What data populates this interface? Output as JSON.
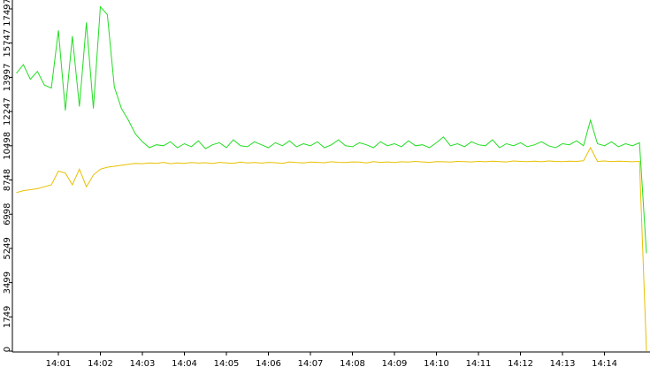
{
  "chart_data": {
    "type": "line",
    "categories": [
      null,
      null,
      null,
      null,
      null,
      null,
      "14:01",
      null,
      null,
      null,
      null,
      null,
      "14:02",
      null,
      null,
      null,
      null,
      null,
      "14:03",
      null,
      null,
      null,
      null,
      null,
      "14:04",
      null,
      null,
      null,
      null,
      null,
      "14:05",
      null,
      null,
      null,
      null,
      null,
      "14:06",
      null,
      null,
      null,
      null,
      null,
      "14:07",
      null,
      null,
      null,
      null,
      null,
      "14:08",
      null,
      null,
      null,
      null,
      null,
      "14:09",
      null,
      null,
      null,
      null,
      null,
      "14:10",
      null,
      null,
      null,
      null,
      null,
      "14:11",
      null,
      null,
      null,
      null,
      null,
      "14:12",
      null,
      null,
      null,
      null,
      null,
      "14:13",
      null,
      null,
      null,
      null,
      null,
      "14:14",
      null,
      null,
      null,
      null,
      null,
      null
    ],
    "series": [
      {
        "color": "#22dd22",
        "values": [
          14200,
          14650,
          13900,
          14300,
          13600,
          13450,
          16400,
          12300,
          16100,
          12500,
          16800,
          12400,
          17600,
          17200,
          13500,
          12400,
          11800,
          11100,
          10700,
          10400,
          10550,
          10500,
          10700,
          10400,
          10600,
          10450,
          10750,
          10350,
          10550,
          10650,
          10400,
          10800,
          10500,
          10450,
          10700,
          10550,
          10400,
          10650,
          10500,
          10750,
          10450,
          10600,
          10500,
          10700,
          10400,
          10550,
          10800,
          10500,
          10450,
          10650,
          10550,
          10400,
          10700,
          10500,
          10600,
          10450,
          10750,
          10500,
          10550,
          10400,
          10650,
          10950,
          10500,
          10600,
          10450,
          10700,
          10550,
          10500,
          10800,
          10400,
          10600,
          10500,
          10650,
          10450,
          10550,
          10700,
          10500,
          10400,
          10600,
          10550,
          10750,
          10500,
          11800,
          10600,
          10500,
          10700,
          10450,
          10600,
          10500,
          10650,
          5000
        ]
      },
      {
        "color": "#e8c000",
        "values": [
          8100,
          8200,
          8250,
          8300,
          8400,
          8500,
          9200,
          9100,
          8500,
          9300,
          8400,
          9000,
          9300,
          9400,
          9450,
          9500,
          9550,
          9600,
          9580,
          9620,
          9600,
          9650,
          9580,
          9620,
          9600,
          9640,
          9610,
          9630,
          9590,
          9650,
          9620,
          9600,
          9660,
          9620,
          9640,
          9610,
          9650,
          9630,
          9600,
          9670,
          9640,
          9620,
          9660,
          9650,
          9630,
          9680,
          9650,
          9640,
          9670,
          9660,
          9620,
          9690,
          9650,
          9670,
          9640,
          9680,
          9660,
          9700,
          9670,
          9650,
          9690,
          9680,
          9660,
          9700,
          9690,
          9670,
          9700,
          9680,
          9710,
          9690,
          9670,
          9720,
          9700,
          9690,
          9710,
          9680,
          9720,
          9700,
          9690,
          9710,
          9700,
          9730,
          10400,
          9700,
          9720,
          9690,
          9710,
          9700,
          9680,
          9700,
          0
        ]
      }
    ],
    "ylim": [
      0,
      17497
    ],
    "yticks": [
      0,
      1749,
      3499,
      5249,
      6998,
      8748,
      10498,
      12247,
      13997,
      15747,
      17497
    ]
  }
}
